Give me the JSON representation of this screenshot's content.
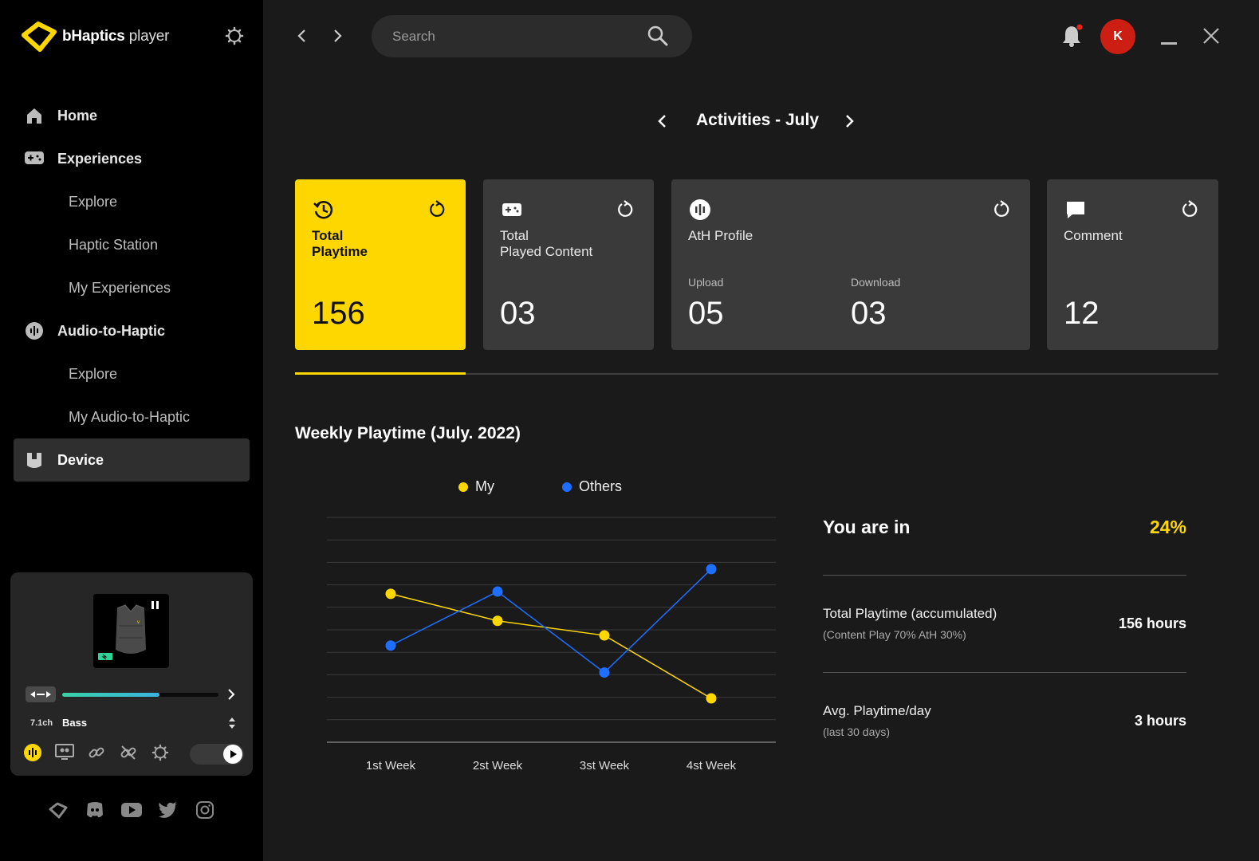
{
  "app": {
    "brand_bold": "bHaptics",
    "brand_light": "player"
  },
  "sidebar": {
    "items": [
      {
        "label": "Home",
        "type": "main",
        "icon": "home-icon"
      },
      {
        "label": "Experiences",
        "type": "main",
        "icon": "gamepad-icon"
      },
      {
        "label": "Explore",
        "type": "sub"
      },
      {
        "label": "Haptic Station",
        "type": "sub"
      },
      {
        "label": "My Experiences",
        "type": "sub"
      },
      {
        "label": "Audio-to-Haptic",
        "type": "main",
        "icon": "audio-wave-icon"
      },
      {
        "label": "Explore",
        "type": "sub"
      },
      {
        "label": "My Audio-to-Haptic",
        "type": "sub"
      },
      {
        "label": "Device",
        "type": "main",
        "icon": "device-icon",
        "active": true
      }
    ]
  },
  "device": {
    "channel": "7.1ch",
    "mode": "Bass",
    "intensity": 0.62
  },
  "search": {
    "placeholder": "Search"
  },
  "user": {
    "initial": "K"
  },
  "header": {
    "title": "Activities - July"
  },
  "cards": {
    "playtime": {
      "label": "Total\nPlaytime",
      "value": "156"
    },
    "played_content": {
      "label": "Total\nPlayed Content",
      "value": "03"
    },
    "ath_profile": {
      "label": "AtH Profile",
      "upload_label": "Upload",
      "upload_value": "05",
      "download_label": "Download",
      "download_value": "03"
    },
    "comment": {
      "label": "Comment",
      "value": "12"
    }
  },
  "chart_section": {
    "title": "Weekly Playtime (July. 2022)"
  },
  "chart_data": {
    "type": "line",
    "categories": [
      "1st Week",
      "2st Week",
      "3st Week",
      "4st Week"
    ],
    "series": [
      {
        "name": "My",
        "color": "#ffd700",
        "values": [
          6.6,
          5.4,
          4.75,
          1.95
        ]
      },
      {
        "name": "Others",
        "color": "#1e6fff",
        "values": [
          4.3,
          6.7,
          3.1,
          7.7
        ]
      }
    ],
    "ylim": [
      0,
      10
    ],
    "grid": true,
    "legend": "top"
  },
  "stats": {
    "rank_label": "You are in",
    "rank_value": "24%",
    "total_label": "Total Playtime (accumulated)",
    "total_sub": "(Content Play  70% AtH 30%)",
    "total_value": "156 hours",
    "avg_label": "Avg. Playtime/day",
    "avg_sub": "(last 30 days)",
    "avg_value": "3 hours"
  },
  "colors": {
    "accent": "#ffd700",
    "others": "#1e6fff",
    "avatar": "#cc1e12"
  }
}
